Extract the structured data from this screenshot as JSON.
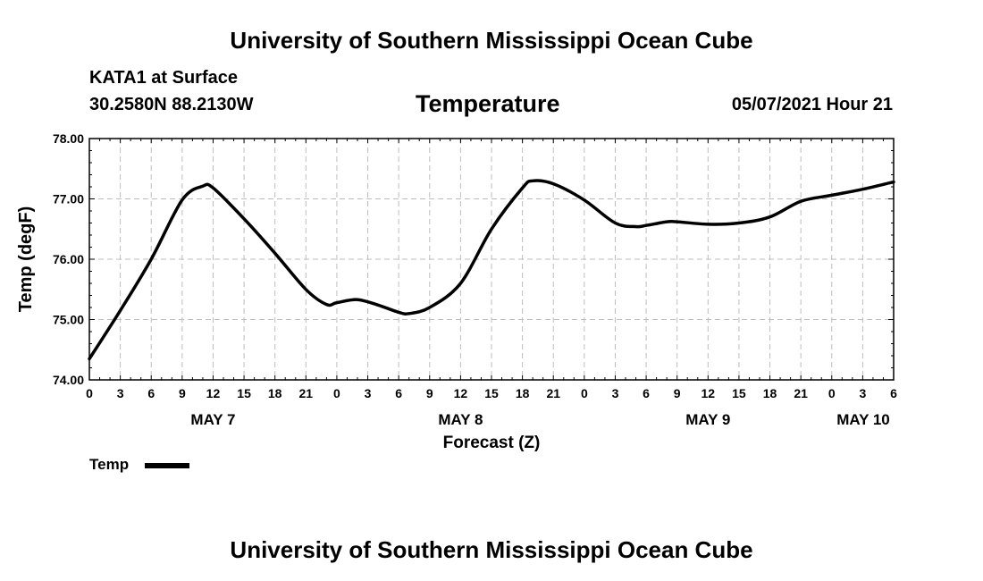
{
  "header": {
    "title_top": "University of Southern Mississippi Ocean Cube",
    "station": "KATA1 at Surface",
    "coords": "30.2580N  88.2130W",
    "variable": "Temperature",
    "issue_time": "05/07/2021 Hour 21",
    "title_bottom": "University of Southern Mississippi Ocean Cube"
  },
  "legend": {
    "label": "Temp",
    "line_color": "#000000"
  },
  "chart_data": {
    "type": "line",
    "title": "Temperature",
    "xlabel": "Forecast (Z)",
    "ylabel": "Temp (degF)",
    "xlim": [
      0,
      78
    ],
    "ylim": [
      74.0,
      78.0
    ],
    "grid": true,
    "y_ticks": [
      "74.00",
      "75.00",
      "76.00",
      "77.00",
      "78.00"
    ],
    "x_ticks": [
      "0",
      "3",
      "6",
      "9",
      "12",
      "15",
      "18",
      "21",
      "0",
      "3",
      "6",
      "9",
      "12",
      "15",
      "18",
      "21",
      "0",
      "3",
      "6",
      "9",
      "12",
      "15",
      "18",
      "21",
      "0",
      "3",
      "6"
    ],
    "day_labels": [
      {
        "label": "MAY 7",
        "hour": 12
      },
      {
        "label": "MAY 8",
        "hour": 36
      },
      {
        "label": "MAY 9",
        "hour": 60
      },
      {
        "label": "MAY 10",
        "hour": 78
      }
    ],
    "series": [
      {
        "name": "Temp",
        "color": "#000000",
        "x": [
          0,
          3,
          6,
          9,
          11,
          12,
          15,
          18,
          21,
          23,
          24,
          26,
          28,
          30,
          31,
          33,
          36,
          39,
          42,
          43,
          45,
          48,
          51,
          53,
          54,
          56,
          57,
          60,
          63,
          66,
          69,
          72,
          75,
          78
        ],
        "y": [
          74.35,
          75.15,
          76.0,
          76.98,
          77.21,
          77.18,
          76.67,
          76.1,
          75.5,
          75.25,
          75.28,
          75.33,
          75.24,
          75.12,
          75.1,
          75.2,
          75.6,
          76.5,
          77.18,
          77.3,
          77.25,
          76.98,
          76.6,
          76.54,
          76.56,
          76.62,
          76.62,
          76.58,
          76.6,
          76.7,
          76.96,
          77.06,
          77.16,
          77.28
        ]
      }
    ]
  }
}
